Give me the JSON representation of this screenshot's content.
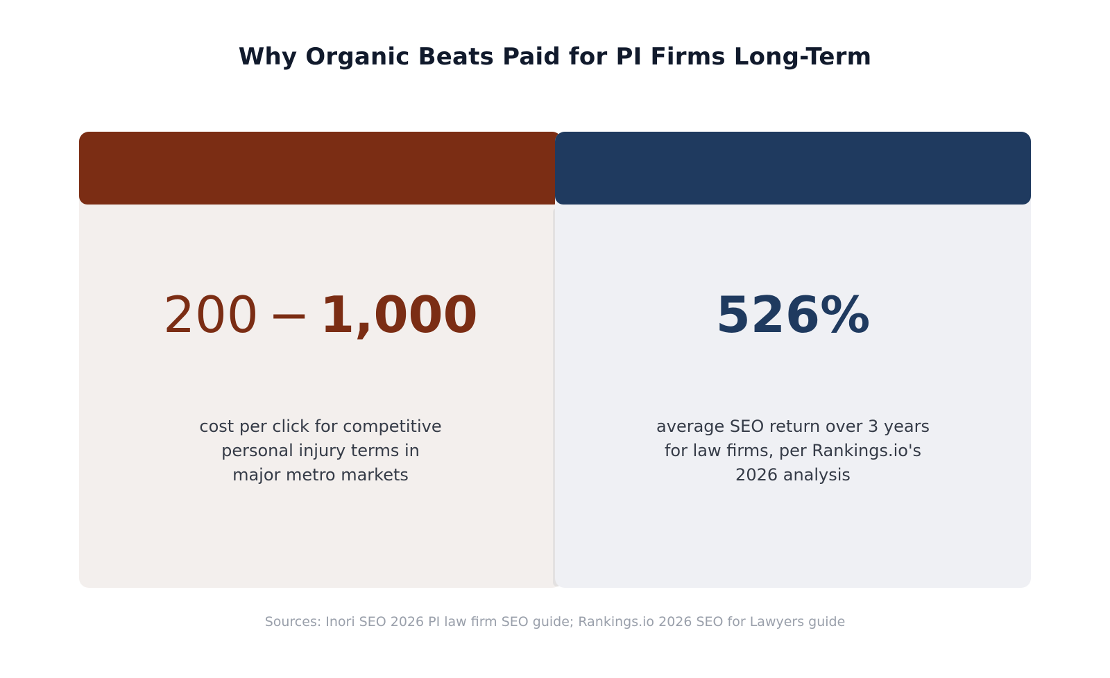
{
  "title": "Why Organic Beats Paid for PI Firms Long-Term",
  "colors": {
    "paid_accent": "#7b2d14",
    "organic_accent": "#1f3a5f",
    "paid_panel_bg": "#f3efed",
    "organic_panel_bg": "#eff0f4"
  },
  "panels": {
    "paid": {
      "stat_low": "200",
      "stat_separator": "−",
      "stat_high": "1,000",
      "description_lines": [
        "cost per click for competitive",
        "personal injury terms in",
        "major metro markets"
      ]
    },
    "organic": {
      "stat": "526%",
      "description_lines": [
        "average SEO return over 3 years",
        "for law firms, per Rankings.io's",
        "2026 analysis"
      ]
    }
  },
  "sources": "Sources: Inori SEO 2026 PI law firm SEO guide; Rankings.io 2026 SEO for Lawyers guide"
}
